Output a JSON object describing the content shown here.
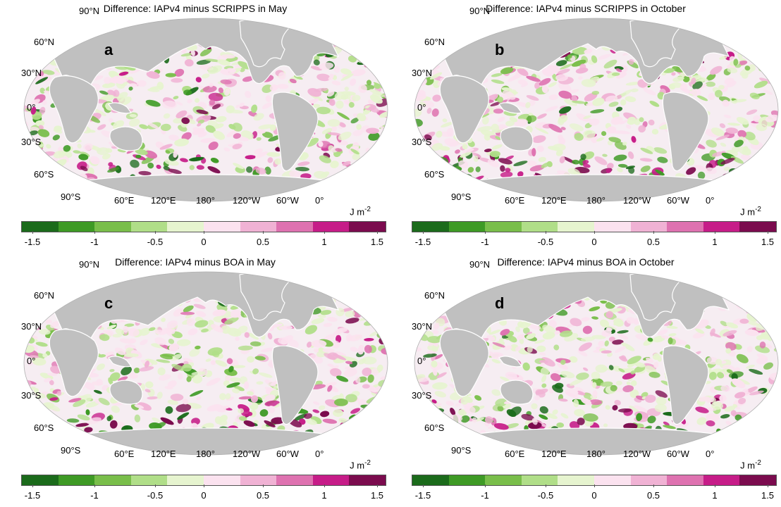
{
  "colorbar": {
    "colors": [
      "#1b6b1b",
      "#3e9a25",
      "#79be4a",
      "#b0de88",
      "#e6f4cf",
      "#fbe2ef",
      "#f0b2d4",
      "#de72b0",
      "#c61c88",
      "#7b0b4e"
    ],
    "ticks": [
      "-1.5",
      "-1",
      "-0.5",
      "0",
      "0.5",
      "1",
      "1.5"
    ],
    "unit": "J m",
    "unit_exp": "-2"
  },
  "map_colors": {
    "ocean": "#f6edf2",
    "land": "#c0c0c0",
    "ice": "#ffffff",
    "edge": "#b0b0b0"
  },
  "lat_labels": [
    "90°N",
    "60°N",
    "30°N",
    "0°",
    "30°S",
    "60°S",
    "90°S"
  ],
  "lon_labels": [
    "60°E",
    "120°E",
    "180°",
    "120°W",
    "60°W",
    "0°"
  ],
  "panels": [
    {
      "letter": "a",
      "title": "Difference: IAPv4 minus SCRIPPS in May",
      "seed": 11
    },
    {
      "letter": "b",
      "title": "Difference: IAPv4 minus SCRIPPS in October",
      "seed": 29
    },
    {
      "letter": "c",
      "title": "Difference: IAPv4 minus BOA in May",
      "seed": 47
    },
    {
      "letter": "d",
      "title": "Difference: IAPv4 minus BOA in October",
      "seed": 83
    }
  ]
}
